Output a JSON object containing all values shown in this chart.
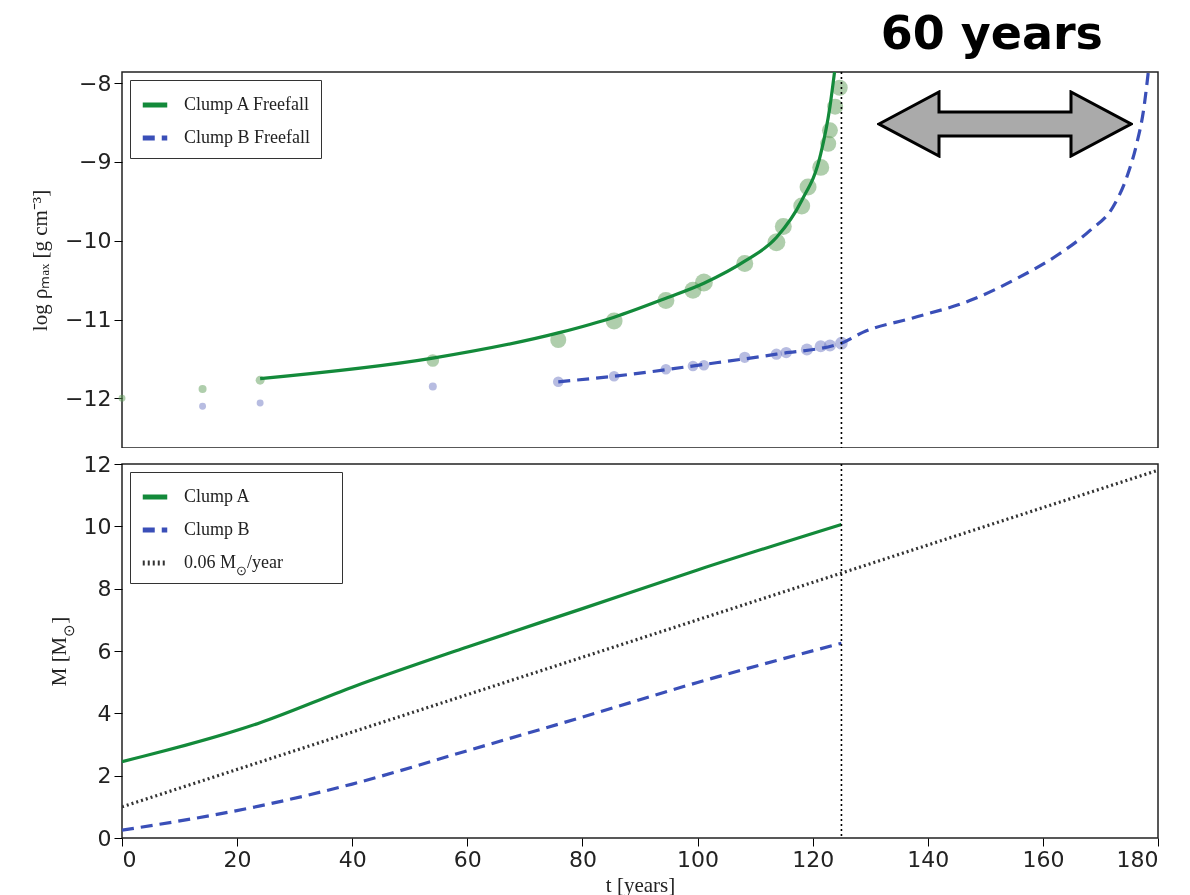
{
  "chart_data": [
    {
      "type": "line",
      "ylabel": "log ρₘₐₓ [g cm⁻³]",
      "annotations": [
        "60 years"
      ],
      "xlim": [
        0,
        180
      ],
      "xticks": [
        0,
        20,
        40,
        60,
        80,
        100,
        120,
        140,
        160,
        180
      ],
      "ylim": [
        -12.63,
        -7.86
      ],
      "yticks": [
        -12,
        -11,
        -10,
        -9,
        -8
      ],
      "tick_labels": "y",
      "legend": "top left",
      "series": [
        {
          "type": "bubble",
          "color": "#5f9e5a",
          "x": [
            0,
            14,
            24,
            54,
            75.8,
            85.5,
            94.5,
            99.2,
            101.1,
            108.2,
            113.7,
            114.9,
            118.1,
            119.2,
            121.4,
            122.7,
            123,
            123.9,
            124.7
          ],
          "values": [
            -12.0,
            -11.88,
            -11.77,
            -11.52,
            -11.26,
            -11.02,
            -10.76,
            -10.63,
            -10.53,
            -10.29,
            -10.02,
            -9.82,
            -9.56,
            -9.32,
            -9.07,
            -8.77,
            -8.6,
            -8.3,
            -8.06
          ],
          "sizes": [
            0.15,
            0.2,
            0.25,
            0.5,
            0.8,
            0.9,
            0.9,
            0.9,
            1,
            0.9,
            1,
            0.9,
            0.9,
            0.9,
            0.9,
            0.8,
            0.8,
            0.8,
            0.8
          ]
        },
        {
          "type": "bubble",
          "color": "#7079c4",
          "x": [
            14,
            24,
            54,
            75.8,
            85.5,
            94.5,
            99.2,
            101.1,
            108.2,
            113.7,
            115.4,
            119,
            121.4,
            123,
            125
          ],
          "values": [
            -12.1,
            -12.06,
            -11.85,
            -11.79,
            -11.72,
            -11.63,
            -11.59,
            -11.58,
            -11.48,
            -11.44,
            -11.42,
            -11.38,
            -11.34,
            -11.33,
            -11.3
          ],
          "sizes": [
            0.15,
            0.15,
            0.2,
            0.35,
            0.35,
            0.35,
            0.35,
            0.35,
            0.4,
            0.4,
            0.4,
            0.45,
            0.45,
            0.45,
            0.5
          ]
        },
        {
          "type": "line",
          "name": "Clump A Freefall",
          "color": "#138a3a",
          "line_style": "solid",
          "x": [
            24,
            54,
            75.8,
            85.5,
            94.5,
            101.1,
            108.2,
            113.7,
            118.1,
            121.4,
            123,
            123.8
          ],
          "values": [
            -11.75,
            -11.49,
            -11.17,
            -10.97,
            -10.73,
            -10.54,
            -10.26,
            -9.96,
            -9.49,
            -8.9,
            -8.3,
            -7.86
          ]
        },
        {
          "type": "line",
          "name": "Clump B Freefall",
          "color": "#3a4fb8",
          "line_style": "dashed",
          "x": [
            75.8,
            85.5,
            101.1,
            113.7,
            125,
            128.8,
            137.4,
            147.3,
            156,
            163,
            168.2,
            172.2,
            174.6,
            176.3,
            177.5,
            178.3
          ],
          "values": [
            -11.79,
            -11.72,
            -11.57,
            -11.44,
            -11.3,
            -11.16,
            -10.98,
            -10.76,
            -10.46,
            -10.16,
            -9.87,
            -9.57,
            -9.19,
            -8.77,
            -8.34,
            -7.87
          ]
        }
      ],
      "ref_lines": [
        {
          "axis": "x",
          "value": 125,
          "color": "#000000",
          "line_style": "dotted"
        }
      ]
    },
    {
      "type": "line",
      "xlabel": "t [years]",
      "ylabel": "M [M$_{⊙}$]",
      "xlim": [
        0,
        180
      ],
      "xticks": [
        0,
        20,
        40,
        60,
        80,
        100,
        120,
        140,
        160,
        180
      ],
      "ylim": [
        0,
        12
      ],
      "yticks": [
        0,
        2,
        4,
        6,
        8,
        10,
        12
      ],
      "legend": "top left",
      "series": [
        {
          "name": "Clump A",
          "color": "#138a3a",
          "line_style": "solid",
          "x": [
            0,
            24,
            40,
            60,
            80,
            100,
            125
          ],
          "values": [
            2.45,
            3.7,
            4.84,
            6.13,
            7.36,
            8.6,
            10.06
          ]
        },
        {
          "name": "Clump B",
          "color": "#3a4fb8",
          "line_style": "dashed",
          "x": [
            0,
            24,
            40,
            60,
            80,
            100,
            125
          ],
          "values": [
            0.25,
            1.03,
            1.73,
            2.8,
            3.88,
            4.99,
            6.25
          ]
        },
        {
          "name": "0.06 M$_{⊙}$/year",
          "color": "#333333",
          "line_style": "dotted",
          "x": [
            0,
            180
          ],
          "values": [
            1.0,
            11.8
          ]
        }
      ],
      "ref_lines": [
        {
          "axis": "x",
          "value": 125,
          "color": "#000000",
          "line_style": "dotted"
        }
      ]
    }
  ]
}
